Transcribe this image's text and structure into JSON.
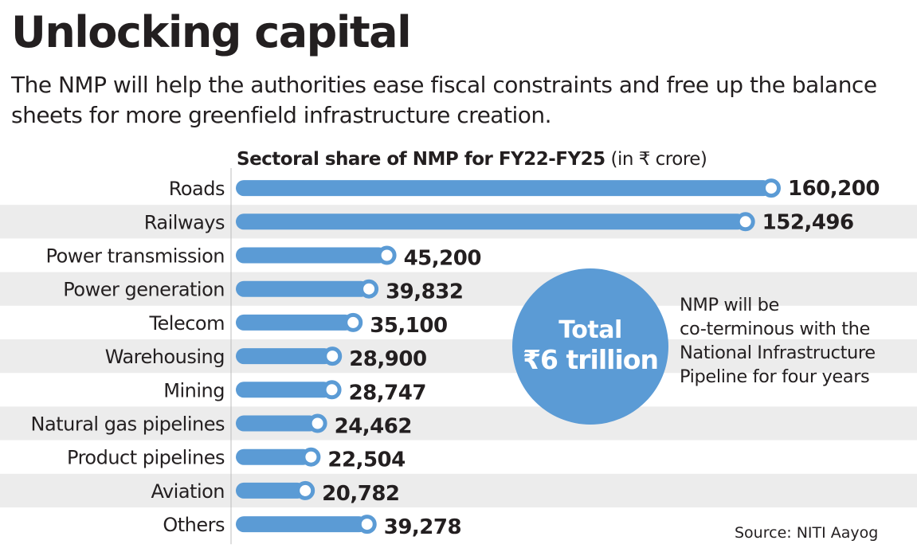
{
  "title": "Unlocking capital",
  "subtitle": "The NMP will help the authorities ease fiscal constraints and free up the balance sheets for more greenfield infrastructure creation.",
  "colors": {
    "bar": "#5b9bd5",
    "stripe": "#ececec",
    "marker_fill": "#ffffff",
    "text": "#231f20"
  },
  "chart_data": {
    "type": "bar",
    "orientation": "horizontal",
    "title": "Sectoral share of NMP for FY22-FY25",
    "title_unit": "(in ₹ crore)",
    "categories": [
      "Roads",
      "Railways",
      "Power transmission",
      "Power generation",
      "Telecom",
      "Warehousing",
      "Mining",
      "Natural gas pipelines",
      "Product pipelines",
      "Aviation",
      "Others"
    ],
    "values": [
      160200,
      152496,
      45200,
      39832,
      35100,
      28900,
      28747,
      24462,
      22504,
      20782,
      39278
    ],
    "value_labels": [
      "160,200",
      "152,496",
      "45,200",
      "39,832",
      "35,100",
      "28,900",
      "28,747",
      "24,462",
      "22,504",
      "20,782",
      "39,278"
    ],
    "xlim": [
      0,
      160200
    ],
    "grid": false,
    "legend": "none"
  },
  "callout": {
    "label": "Total",
    "value": "₹6 trillion"
  },
  "note": "NMP will be\nco-terminous with the\nNational Infrastructure\nPipeline for four years",
  "source": "Source: NITI Aayog"
}
